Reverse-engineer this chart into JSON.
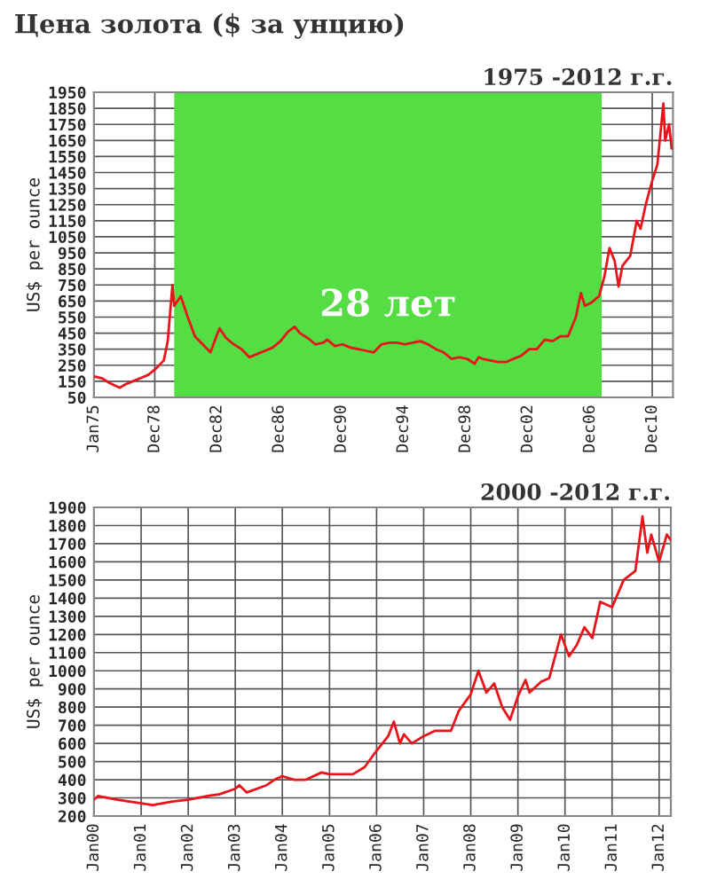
{
  "chart_data": [
    {
      "type": "line",
      "title": "Цена золота ($ за унцию)",
      "subtitle": "1975 -2012 г.г.",
      "ylabel": "US$ per ounce",
      "xlim": [
        "1975-01",
        "2012-04"
      ],
      "ylim": [
        50,
        1950
      ],
      "xticks": [
        {
          "value": "1975-01",
          "label": "Jan75"
        },
        {
          "value": "1978-12",
          "label": "Dec78"
        },
        {
          "value": "1982-12",
          "label": "Dec82"
        },
        {
          "value": "1986-12",
          "label": "Dec86"
        },
        {
          "value": "1990-12",
          "label": "Dec90"
        },
        {
          "value": "1994-12",
          "label": "Dec94"
        },
        {
          "value": "1998-12",
          "label": "Dec98"
        },
        {
          "value": "2002-12",
          "label": "Dec02"
        },
        {
          "value": "2006-12",
          "label": "Dec06"
        },
        {
          "value": "2010-12",
          "label": "Dec10"
        }
      ],
      "yticks": [
        50,
        150,
        250,
        350,
        450,
        550,
        650,
        750,
        850,
        950,
        1050,
        1150,
        1250,
        1350,
        1450,
        1550,
        1650,
        1750,
        1850,
        1950
      ],
      "grid": true,
      "bands": [
        {
          "axis": "x",
          "from": "1980-03",
          "to": "2007-09",
          "label": "28 лет",
          "color": "#55dd44"
        }
      ],
      "series": [
        {
          "color": "#e8141b",
          "x": [
            "1975-01",
            "1975-07",
            "1976-01",
            "1976-09",
            "1977-01",
            "1977-07",
            "1978-01",
            "1978-07",
            "1979-01",
            "1979-07",
            "1979-10",
            "1980-01-20",
            "1980-03",
            "1980-08",
            "1981-01",
            "1981-07",
            "1982-01",
            "1982-07",
            "1982-12",
            "1983-02",
            "1983-07",
            "1984-01",
            "1984-07",
            "1985-01",
            "1985-07",
            "1986-01",
            "1986-07",
            "1987-01",
            "1987-07",
            "1987-12",
            "1988-04",
            "1988-10",
            "1989-04",
            "1989-10",
            "1990-01",
            "1990-07",
            "1991-01",
            "1991-07",
            "1992-01",
            "1992-07",
            "1993-01",
            "1993-07",
            "1994-01",
            "1994-07",
            "1995-01",
            "1995-07",
            "1996-01",
            "1996-07",
            "1997-01",
            "1997-07",
            "1998-01",
            "1998-07",
            "1999-01",
            "1999-07",
            "1999-10",
            "2000-01",
            "2000-07",
            "2001-01",
            "2001-07",
            "2002-01",
            "2002-07",
            "2003-01",
            "2003-07",
            "2004-01",
            "2004-07",
            "2005-01",
            "2005-07",
            "2006-01",
            "2006-05",
            "2006-08",
            "2007-01",
            "2007-07",
            "2007-11",
            "2008-03",
            "2008-07",
            "2008-10",
            "2009-01",
            "2009-07",
            "2009-12",
            "2010-03",
            "2010-07",
            "2010-12",
            "2011-04",
            "2011-08-20",
            "2011-10",
            "2012-01",
            "2012-03"
          ],
          "values": [
            180,
            170,
            140,
            110,
            130,
            150,
            170,
            190,
            230,
            280,
            400,
            750,
            620,
            680,
            560,
            430,
            380,
            330,
            440,
            480,
            420,
            380,
            350,
            300,
            320,
            340,
            360,
            400,
            460,
            490,
            450,
            420,
            380,
            390,
            410,
            370,
            380,
            360,
            350,
            340,
            330,
            380,
            390,
            390,
            380,
            390,
            400,
            380,
            350,
            330,
            290,
            300,
            290,
            260,
            300,
            290,
            280,
            270,
            270,
            290,
            310,
            350,
            350,
            410,
            400,
            430,
            430,
            550,
            700,
            620,
            640,
            680,
            800,
            980,
            900,
            740,
            870,
            930,
            1150,
            1100,
            1250,
            1400,
            1500,
            1880,
            1650,
            1750,
            1600
          ]
        }
      ]
    },
    {
      "type": "line",
      "subtitle": "2000 -2012 г.г.",
      "ylabel": "US$ per ounce",
      "xlim": [
        "2000-01",
        "2012-04"
      ],
      "ylim": [
        200,
        1900
      ],
      "xticks": [
        {
          "value": "2000-01",
          "label": "Jan00"
        },
        {
          "value": "2001-01",
          "label": "Jan01"
        },
        {
          "value": "2002-01",
          "label": "Jan02"
        },
        {
          "value": "2003-01",
          "label": "Jan03"
        },
        {
          "value": "2004-01",
          "label": "Jan04"
        },
        {
          "value": "2005-01",
          "label": "Jan05"
        },
        {
          "value": "2006-01",
          "label": "Jan06"
        },
        {
          "value": "2007-01",
          "label": "Jan07"
        },
        {
          "value": "2008-01",
          "label": "Jan08"
        },
        {
          "value": "2009-01",
          "label": "Jan09"
        },
        {
          "value": "2010-01",
          "label": "Jan10"
        },
        {
          "value": "2011-01",
          "label": "Jan11"
        },
        {
          "value": "2012-01",
          "label": "Jan12"
        }
      ],
      "yticks": [
        200,
        300,
        400,
        500,
        600,
        700,
        800,
        900,
        1000,
        1100,
        1200,
        1300,
        1400,
        1500,
        1600,
        1700,
        1800,
        1900
      ],
      "grid": true,
      "series": [
        {
          "color": "#e8141b",
          "x": [
            "2000-01",
            "2000-02",
            "2000-07",
            "2001-01",
            "2001-04",
            "2001-09",
            "2002-01",
            "2002-06",
            "2002-09",
            "2003-01",
            "2003-02",
            "2003-04",
            "2003-09",
            "2003-11",
            "2004-01",
            "2004-04",
            "2004-07",
            "2004-11",
            "2005-01",
            "2005-07",
            "2005-10",
            "2006-01",
            "2006-04",
            "2006-05-15",
            "2006-07",
            "2006-08",
            "2006-10",
            "2007-01",
            "2007-04",
            "2007-08",
            "2007-10",
            "2008-01",
            "2008-03",
            "2008-05",
            "2008-07",
            "2008-09",
            "2008-11",
            "2009-01",
            "2009-03",
            "2009-04",
            "2009-07",
            "2009-09",
            "2009-12",
            "2010-02",
            "2010-04",
            "2010-06",
            "2010-08",
            "2010-10",
            "2011-01",
            "2011-04",
            "2011-07",
            "2011-08-25",
            "2011-10",
            "2011-11",
            "2012-01",
            "2012-03",
            "2012-04"
          ],
          "values": [
            290,
            310,
            290,
            270,
            260,
            280,
            290,
            310,
            320,
            350,
            370,
            330,
            370,
            400,
            420,
            400,
            400,
            440,
            430,
            430,
            470,
            560,
            640,
            720,
            600,
            650,
            600,
            640,
            670,
            670,
            780,
            870,
            1000,
            880,
            930,
            800,
            730,
            860,
            950,
            880,
            940,
            960,
            1200,
            1080,
            1140,
            1240,
            1180,
            1380,
            1350,
            1500,
            1550,
            1850,
            1650,
            1750,
            1600,
            1750,
            1720
          ]
        }
      ]
    }
  ]
}
